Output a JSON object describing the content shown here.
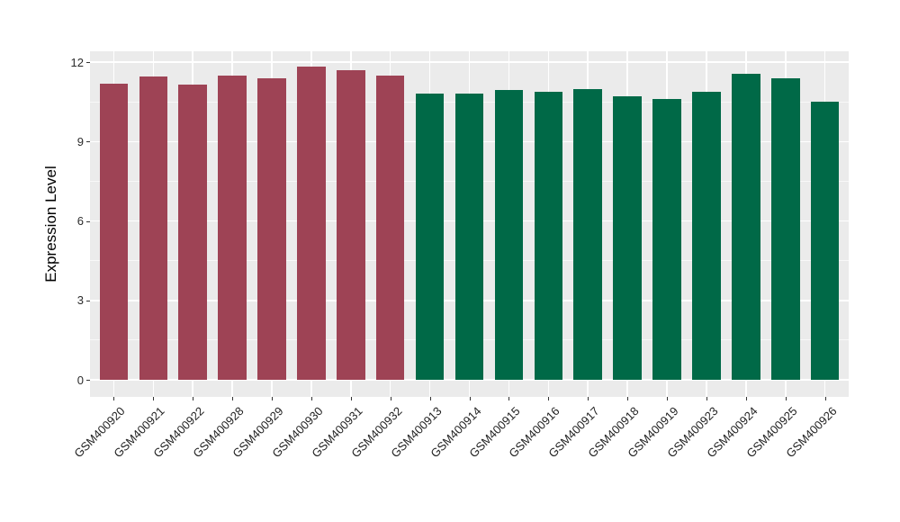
{
  "figure": {
    "background": "#FFFFFF",
    "panel_background": "#EBEBEB",
    "grid_color": "#FFFFFF"
  },
  "chart_data": {
    "type": "bar",
    "title": "",
    "xlabel": "",
    "ylabel": "Expression Level",
    "ylim": [
      0,
      12.4
    ],
    "yticks": [
      0,
      3,
      6,
      9,
      12
    ],
    "ytick_labels": [
      "0",
      "3",
      "6",
      "9",
      "12"
    ],
    "minor_yticks": [
      1.5,
      4.5,
      7.5,
      10.5
    ],
    "grid": true,
    "legend_position": "none",
    "categories": [
      "GSM400920",
      "GSM400921",
      "GSM400922",
      "GSM400928",
      "GSM400929",
      "GSM400930",
      "GSM400931",
      "GSM400932",
      "GSM400913",
      "GSM400914",
      "GSM400915",
      "GSM400916",
      "GSM400917",
      "GSM400918",
      "GSM400919",
      "GSM400923",
      "GSM400924",
      "GSM400925",
      "GSM400926"
    ],
    "values": [
      11.2,
      11.45,
      11.15,
      11.5,
      11.4,
      11.85,
      11.7,
      11.5,
      10.8,
      10.8,
      10.95,
      10.9,
      11.0,
      10.7,
      10.6,
      10.9,
      11.55,
      11.4,
      10.5
    ],
    "groups": [
      "group1",
      "group1",
      "group1",
      "group1",
      "group1",
      "group1",
      "group1",
      "group1",
      "group2",
      "group2",
      "group2",
      "group2",
      "group2",
      "group2",
      "group2",
      "group2",
      "group2",
      "group2",
      "group2"
    ],
    "group_colors": {
      "group1": "#9E4355",
      "group2": "#006947"
    }
  }
}
